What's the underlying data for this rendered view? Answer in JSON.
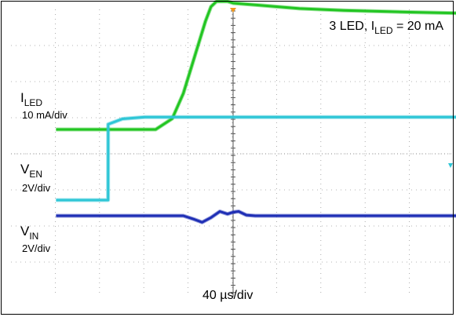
{
  "title": {
    "prefix": "3 LED, I",
    "sub": "LED",
    "suffix": " = 20 mA"
  },
  "timebase": "40 µs/div",
  "channels": [
    {
      "name": "I",
      "sub": "LED",
      "scale": "10 mA/div",
      "color": "#22c522"
    },
    {
      "name": "V",
      "sub": "EN",
      "scale": "2V/div",
      "color": "#2ec6d6"
    },
    {
      "name": "V",
      "sub": "IN",
      "scale": "2V/div",
      "color": "#1f2fb5"
    }
  ],
  "chart_data": {
    "type": "line",
    "title": "3 LED, I_LED = 20 mA",
    "xlabel": "40 µs/div",
    "ylabel": "",
    "x_unit": "µs",
    "xlim": [
      -160,
      240
    ],
    "grid": true,
    "series": [
      {
        "name": "I_LED",
        "scale": "10 mA/div",
        "x": [
          -160,
          -70,
          -55,
          -45,
          -35,
          -25,
          -20,
          -15,
          -10,
          -5,
          0,
          20,
          60,
          100,
          160,
          240
        ],
        "values": [
          0,
          0,
          0.3,
          1.0,
          2.0,
          3.0,
          3.4,
          3.55,
          3.55,
          3.55,
          3.5,
          3.45,
          3.35,
          3.3,
          3.25,
          3.2
        ],
        "color": "#22c522"
      },
      {
        "name": "V_EN",
        "scale": "2V/div",
        "x": [
          -160,
          -113,
          -112.9,
          -100,
          -80,
          -60,
          0,
          240
        ],
        "values": [
          0,
          0,
          2.1,
          2.25,
          2.3,
          2.3,
          2.3,
          2.3
        ],
        "color": "#2ec6d6"
      },
      {
        "name": "V_IN",
        "scale": "2V/div",
        "x": [
          -160,
          -45,
          -35,
          -28,
          -20,
          -12,
          -5,
          0,
          5,
          12,
          20,
          240
        ],
        "values": [
          0,
          0,
          -0.1,
          -0.18,
          -0.05,
          0.12,
          0.05,
          0.1,
          0.12,
          0.02,
          0,
          0
        ],
        "color": "#1f2fb5"
      }
    ]
  }
}
